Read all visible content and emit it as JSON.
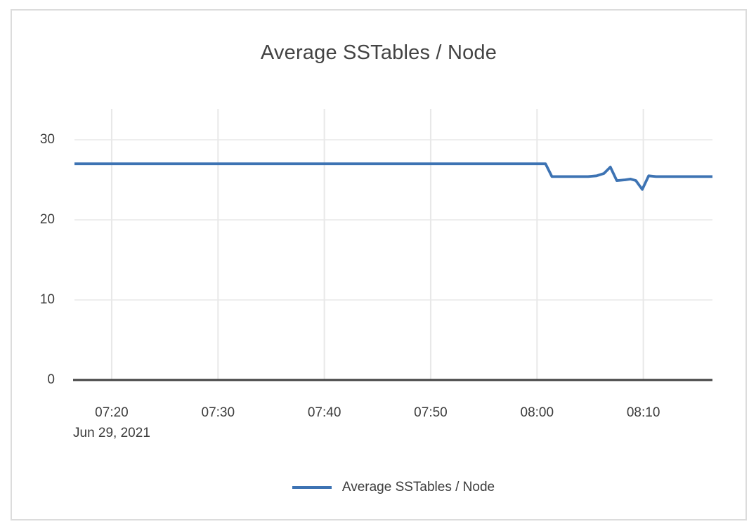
{
  "chart_data": {
    "type": "line",
    "title": "Average SSTables / Node",
    "x_axis_date": "Jun 29, 2021",
    "x_axis_type": "time",
    "x_range": [
      "07:16:30",
      "08:16:30"
    ],
    "ylim": [
      0,
      33.9
    ],
    "grid": true,
    "legend_position": "bottom",
    "colors": {
      "line": "#3D73B3",
      "gridline": "#e8e8e8",
      "axis": "#424242",
      "text": "#3c3c3c",
      "border": "#dcdcdc"
    },
    "x_ticks": [
      {
        "label": "07:20",
        "minutes_after_0700": 20
      },
      {
        "label": "07:30",
        "minutes_after_0700": 30
      },
      {
        "label": "07:40",
        "minutes_after_0700": 40
      },
      {
        "label": "07:50",
        "minutes_after_0700": 50
      },
      {
        "label": "08:00",
        "minutes_after_0700": 60
      },
      {
        "label": "08:10",
        "minutes_after_0700": 70
      }
    ],
    "y_ticks": [
      {
        "label": "0",
        "value": 0
      },
      {
        "label": "10",
        "value": 10
      },
      {
        "label": "20",
        "value": 20
      },
      {
        "label": "30",
        "value": 30
      }
    ],
    "series": [
      {
        "name": "Average SSTables / Node",
        "color": "#3D73B3",
        "points": [
          {
            "t": "07:16:30",
            "m": 16.5,
            "v": 27.0
          },
          {
            "t": "08:00:50",
            "m": 60.8,
            "v": 27.0
          },
          {
            "t": "08:01:25",
            "m": 61.4,
            "v": 25.4
          },
          {
            "t": "08:04:50",
            "m": 64.8,
            "v": 25.4
          },
          {
            "t": "08:05:35",
            "m": 65.6,
            "v": 25.5
          },
          {
            "t": "08:06:20",
            "m": 66.3,
            "v": 25.8
          },
          {
            "t": "08:06:55",
            "m": 66.9,
            "v": 26.6
          },
          {
            "t": "08:07:30",
            "m": 67.5,
            "v": 24.9
          },
          {
            "t": "08:08:20",
            "m": 68.3,
            "v": 25.0
          },
          {
            "t": "08:08:50",
            "m": 68.8,
            "v": 25.1
          },
          {
            "t": "08:09:20",
            "m": 69.3,
            "v": 24.9
          },
          {
            "t": "08:09:55",
            "m": 69.9,
            "v": 23.8
          },
          {
            "t": "08:10:30",
            "m": 70.5,
            "v": 25.5
          },
          {
            "t": "08:11:10",
            "m": 71.2,
            "v": 25.4
          },
          {
            "t": "08:16:30",
            "m": 76.5,
            "v": 25.4
          }
        ]
      }
    ]
  }
}
